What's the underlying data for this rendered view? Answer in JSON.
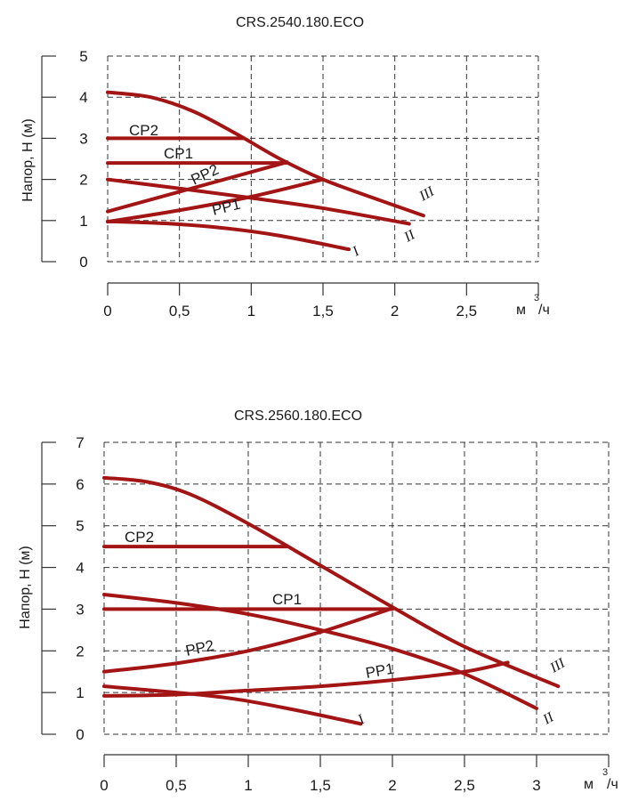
{
  "chart_data": [
    {
      "type": "line",
      "title": "CRS.2540.180.ECO",
      "ylabel": "Напор, Н (м)",
      "xunit": "м",
      "xunit_sup": "3",
      "xunit_tail": "/ч",
      "xlim": [
        0,
        3
      ],
      "ylim": [
        0,
        5
      ],
      "xticks": [
        0,
        0.5,
        1,
        1.5,
        2,
        2.5
      ],
      "xtick_labels": [
        "0",
        "0,5",
        "1",
        "1,5",
        "2",
        "2,5"
      ],
      "yticks": [
        0,
        1,
        2,
        3,
        4,
        5
      ],
      "ytick_labels": [
        "0",
        "1",
        "2",
        "3",
        "4",
        "5"
      ],
      "grid": true,
      "line_color": "#a31515",
      "series": [
        {
          "name": "III",
          "label": "III",
          "points": [
            [
              0,
              4.12
            ],
            [
              0.3,
              4.0
            ],
            [
              0.6,
              3.65
            ],
            [
              0.9,
              3.1
            ],
            [
              1.2,
              2.5
            ],
            [
              1.5,
              2.0
            ],
            [
              1.85,
              1.55
            ],
            [
              2.2,
              1.12
            ]
          ]
        },
        {
          "name": "II",
          "label": "II",
          "points": [
            [
              0,
              2.0
            ],
            [
              0.5,
              1.78
            ],
            [
              1.0,
              1.55
            ],
            [
              1.5,
              1.3
            ],
            [
              2.1,
              0.92
            ]
          ]
        },
        {
          "name": "I",
          "label": "I",
          "points": [
            [
              0,
              0.98
            ],
            [
              0.4,
              0.93
            ],
            [
              0.8,
              0.82
            ],
            [
              1.2,
              0.63
            ],
            [
              1.68,
              0.3
            ]
          ]
        },
        {
          "name": "CP2",
          "label": "CP2",
          "points": [
            [
              0,
              3.0
            ],
            [
              0.95,
              3.0
            ]
          ]
        },
        {
          "name": "CP1",
          "label": "CP1",
          "points": [
            [
              0,
              2.4
            ],
            [
              1.25,
              2.4
            ]
          ]
        },
        {
          "name": "PP2",
          "label": "PP2",
          "points": [
            [
              0,
              1.22
            ],
            [
              1.25,
              2.42
            ]
          ]
        },
        {
          "name": "PP1",
          "label": "PP1",
          "points": [
            [
              0,
              0.97
            ],
            [
              0.5,
              1.25
            ],
            [
              1.0,
              1.58
            ],
            [
              1.5,
              2.0
            ]
          ]
        }
      ]
    },
    {
      "type": "line",
      "title": "CRS.2560.180.ECO",
      "ylabel": "Напор, Н (м)",
      "xunit": "м",
      "xunit_sup": "3",
      "xunit_tail": "/ч",
      "xlim": [
        0,
        3.5
      ],
      "ylim": [
        0,
        7
      ],
      "xticks": [
        0,
        0.5,
        1,
        1.5,
        2,
        2.5,
        3
      ],
      "xtick_labels": [
        "0",
        "0,5",
        "1",
        "1,5",
        "2",
        "2,5",
        "3"
      ],
      "yticks": [
        0,
        1,
        2,
        3,
        4,
        5,
        6,
        7
      ],
      "ytick_labels": [
        "0",
        "1",
        "2",
        "3",
        "4",
        "5",
        "6",
        "7"
      ],
      "grid": true,
      "line_color": "#a31515",
      "series": [
        {
          "name": "III",
          "label": "III",
          "points": [
            [
              0,
              6.15
            ],
            [
              0.3,
              6.05
            ],
            [
              0.6,
              5.75
            ],
            [
              1.0,
              5.05
            ],
            [
              1.5,
              4.05
            ],
            [
              2.0,
              3.05
            ],
            [
              2.5,
              2.1
            ],
            [
              3.15,
              1.15
            ]
          ]
        },
        {
          "name": "II",
          "label": "II",
          "points": [
            [
              0,
              3.35
            ],
            [
              0.5,
              3.15
            ],
            [
              1.0,
              2.88
            ],
            [
              1.5,
              2.5
            ],
            [
              2.0,
              2.05
            ],
            [
              2.5,
              1.45
            ],
            [
              3.0,
              0.62
            ]
          ]
        },
        {
          "name": "I",
          "label": "I",
          "points": [
            [
              0,
              1.15
            ],
            [
              0.5,
              1.0
            ],
            [
              0.9,
              0.85
            ],
            [
              1.3,
              0.6
            ],
            [
              1.78,
              0.25
            ]
          ]
        },
        {
          "name": "CP2",
          "label": "CP2",
          "points": [
            [
              0,
              4.5
            ],
            [
              1.27,
              4.5
            ]
          ]
        },
        {
          "name": "CP1",
          "label": "CP1",
          "points": [
            [
              0,
              3.0
            ],
            [
              2.0,
              3.0
            ]
          ]
        },
        {
          "name": "PP2",
          "label": "PP2",
          "points": [
            [
              0,
              1.5
            ],
            [
              0.5,
              1.7
            ],
            [
              1.0,
              2.0
            ],
            [
              1.5,
              2.45
            ],
            [
              2.0,
              3.02
            ]
          ]
        },
        {
          "name": "PP1",
          "label": "PP1",
          "points": [
            [
              0,
              0.92
            ],
            [
              0.5,
              0.95
            ],
            [
              1.0,
              1.05
            ],
            [
              1.5,
              1.15
            ],
            [
              2.0,
              1.3
            ],
            [
              2.5,
              1.5
            ],
            [
              2.8,
              1.72
            ]
          ]
        }
      ]
    }
  ]
}
